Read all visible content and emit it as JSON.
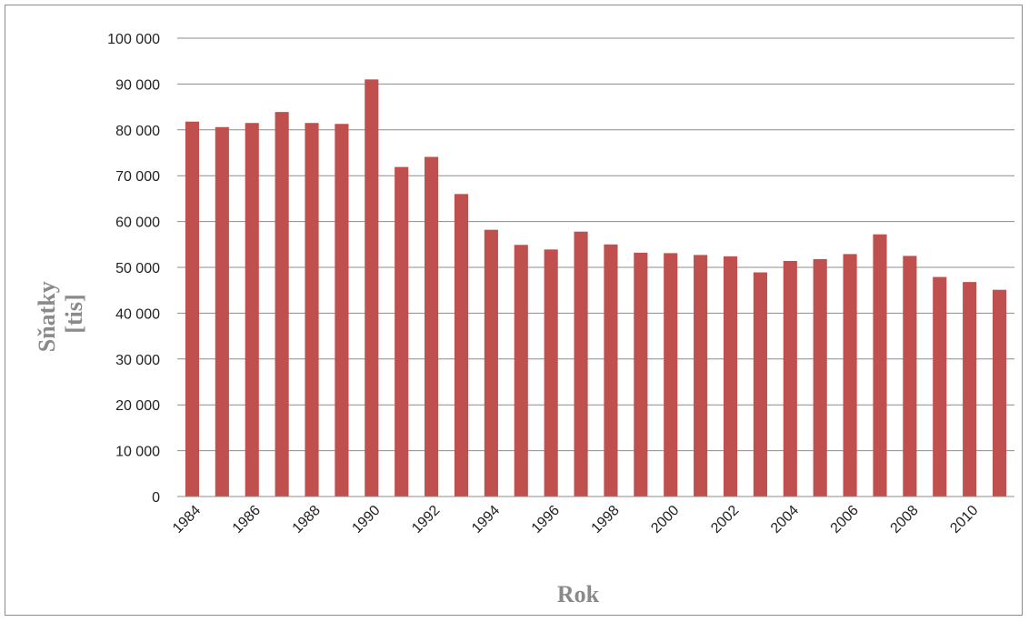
{
  "chart_data": {
    "type": "bar",
    "xlabel": "Rok",
    "ylabel_lines": [
      "Sňatky",
      "[tis]"
    ],
    "categories": [
      "1984",
      "1985",
      "1986",
      "1987",
      "1988",
      "1989",
      "1990",
      "1991",
      "1992",
      "1993",
      "1994",
      "1995",
      "1996",
      "1997",
      "1998",
      "1999",
      "2000",
      "2001",
      "2002",
      "2003",
      "2004",
      "2005",
      "2006",
      "2007",
      "2008",
      "2009",
      "2010",
      "2011"
    ],
    "values": [
      81800,
      80600,
      81500,
      83900,
      81500,
      81300,
      91000,
      71900,
      74100,
      66000,
      58200,
      54900,
      53900,
      57800,
      55000,
      53200,
      53100,
      52700,
      52400,
      48900,
      51400,
      51800,
      52900,
      57200,
      52500,
      47900,
      46800,
      45100
    ],
    "x_tick_labels": [
      "1984",
      "1986",
      "1988",
      "1990",
      "1992",
      "1994",
      "1996",
      "1998",
      "2000",
      "2002",
      "2004",
      "2006",
      "2008",
      "2010"
    ],
    "y_tick_labels": [
      "0",
      "10 000",
      "20 000",
      "30 000",
      "40 000",
      "50 000",
      "60 000",
      "70 000",
      "80 000",
      "90 000",
      "100 000"
    ],
    "ylim": [
      0,
      100000
    ],
    "grid": true,
    "bar_color": "#c0504d",
    "grid_color": "#8c8c8c",
    "legend": "none"
  }
}
